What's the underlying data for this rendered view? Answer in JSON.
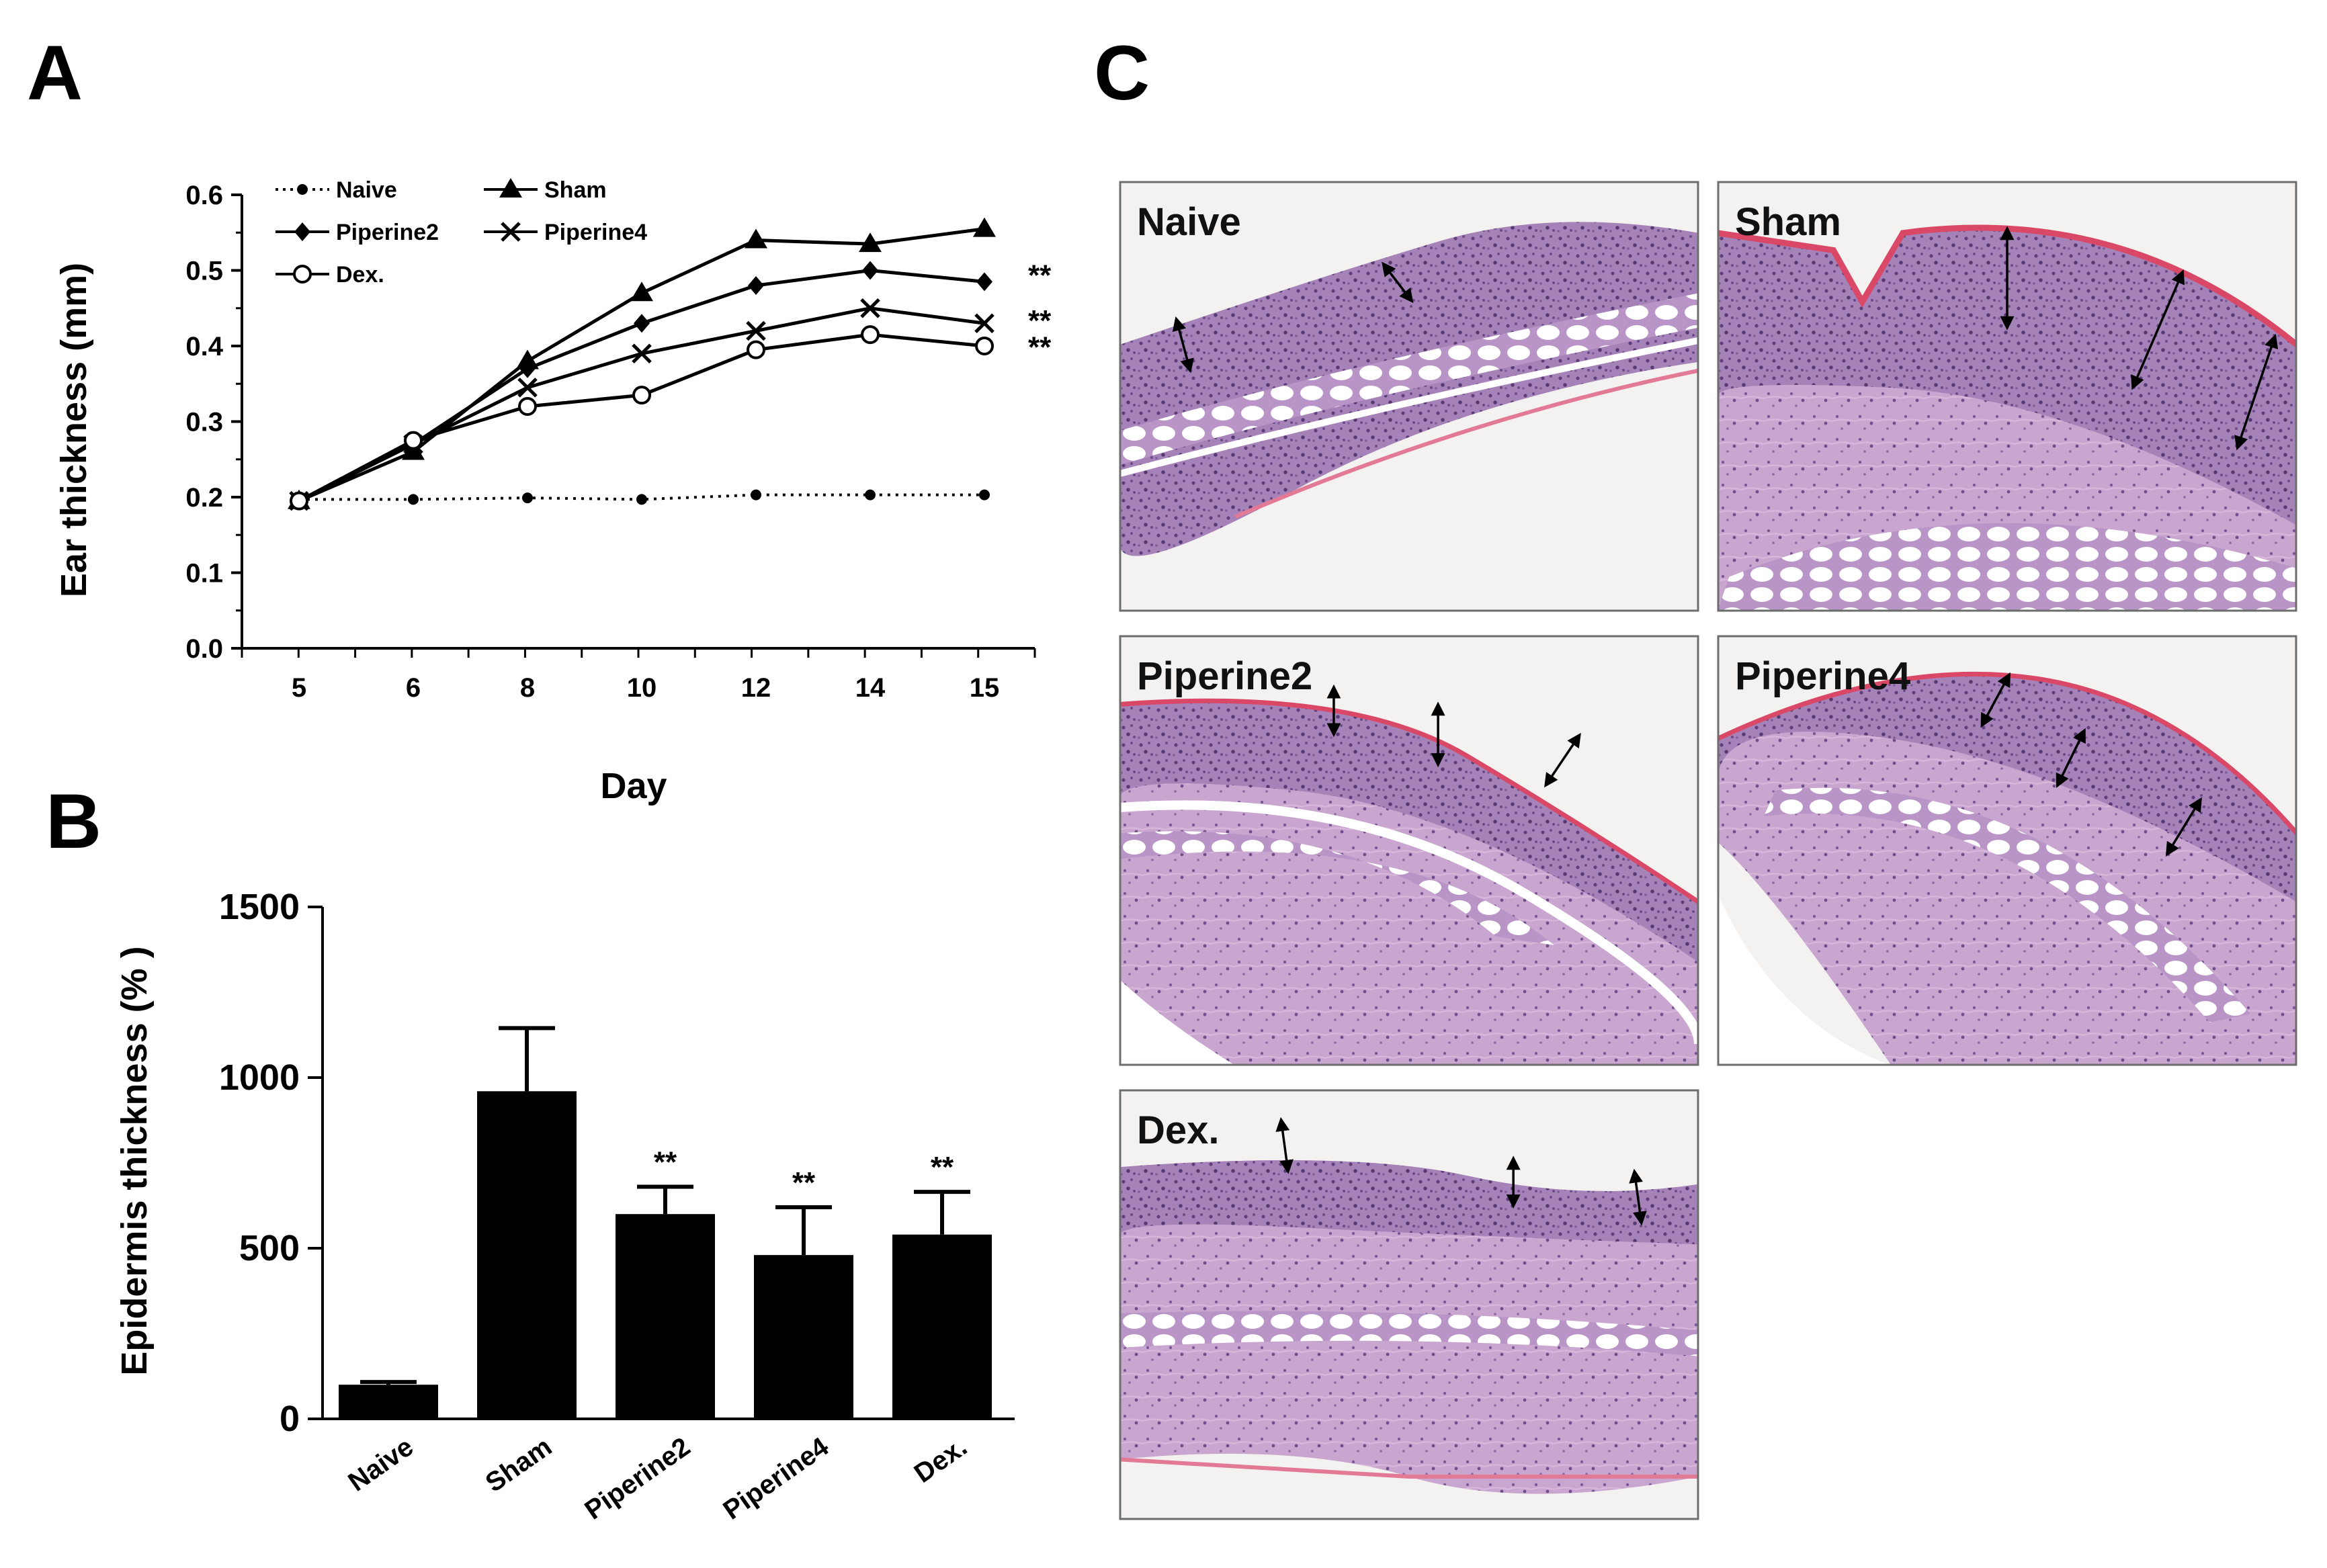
{
  "panels": {
    "A": "A",
    "B": "B",
    "C": "C"
  },
  "chart_data": [
    {
      "panel": "A",
      "type": "line",
      "categories": [
        "5",
        "6",
        "8",
        "10",
        "12",
        "14",
        "15"
      ],
      "xlabel": "Day",
      "ylabel": "Ear thickness (mm)",
      "ylim": [
        0,
        0.6
      ],
      "yticks": [
        "0.0",
        "0.1",
        "0.2",
        "0.3",
        "0.4",
        "0.5",
        "0.6"
      ],
      "legend_position": "top-left",
      "series": [
        {
          "name": "Naive",
          "marker": "dot",
          "line": "dotted",
          "values": [
            0.197,
            0.197,
            0.199,
            0.197,
            0.203,
            0.203,
            0.203
          ]
        },
        {
          "name": "Sham",
          "marker": "triangle",
          "line": "solid",
          "values": [
            0.195,
            0.26,
            0.38,
            0.47,
            0.54,
            0.535,
            0.555
          ]
        },
        {
          "name": "Piperine2",
          "marker": "diamond",
          "line": "solid",
          "values": [
            0.195,
            0.27,
            0.37,
            0.43,
            0.48,
            0.5,
            0.485
          ]
        },
        {
          "name": "Piperine4",
          "marker": "x",
          "line": "solid",
          "values": [
            0.195,
            0.27,
            0.345,
            0.39,
            0.42,
            0.45,
            0.43
          ]
        },
        {
          "name": "Dex.",
          "marker": "open-circle",
          "line": "solid",
          "values": [
            0.195,
            0.275,
            0.32,
            0.335,
            0.395,
            0.415,
            0.4
          ]
        }
      ],
      "significance": [
        "**",
        "**",
        "**"
      ]
    },
    {
      "panel": "B",
      "type": "bar",
      "categories": [
        "Naive",
        "Sham",
        "Piperine2",
        "Piperine4",
        "Dex."
      ],
      "values": [
        100,
        960,
        600,
        480,
        540
      ],
      "errors": [
        8,
        185,
        80,
        140,
        125
      ],
      "significance": [
        "",
        "",
        "**",
        "**",
        "**"
      ],
      "ylabel": "Epidermis thickness (% )",
      "ylim": [
        0,
        1500
      ],
      "yticks": [
        "0",
        "500",
        "1000",
        "1500"
      ]
    }
  ],
  "histology": {
    "images": [
      {
        "label": "Naive"
      },
      {
        "label": "Sham"
      },
      {
        "label": "Piperine2"
      },
      {
        "label": "Piperine4"
      },
      {
        "label": "Dex."
      }
    ]
  },
  "colors": {
    "ink": "#000000",
    "tissue_purple": "#a582b8",
    "tissue_dark": "#7a5896",
    "tissue_pink": "#d8a0c0",
    "keratin_red": "#d94866",
    "background_slide": "#f4f2f0"
  }
}
